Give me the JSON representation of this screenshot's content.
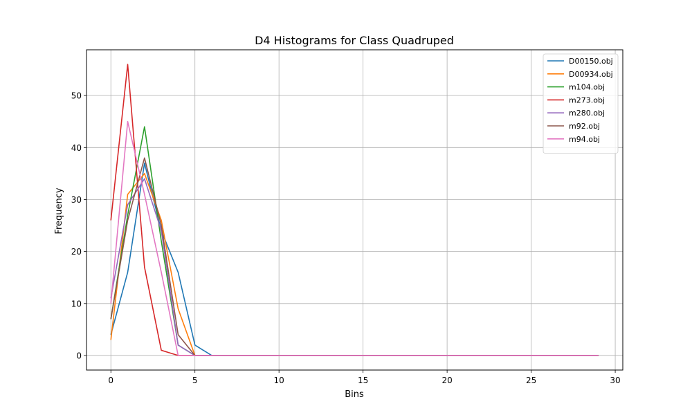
{
  "chart_data": {
    "type": "line",
    "title": "D4 Histograms for Class Quadruped",
    "xlabel": "Bins",
    "ylabel": "Frequency",
    "xlim": [
      -1.45,
      30.45
    ],
    "ylim": [
      -2.8,
      58.8
    ],
    "xticks": [
      0,
      5,
      10,
      15,
      20,
      25,
      30
    ],
    "yticks": [
      0,
      10,
      20,
      30,
      40,
      50
    ],
    "grid": true,
    "legend_position": "top-right",
    "x": [
      0,
      1,
      2,
      3,
      4,
      5,
      6,
      7,
      8,
      9,
      10,
      11,
      12,
      13,
      14,
      15,
      16,
      17,
      18,
      19,
      20,
      21,
      22,
      23,
      24,
      25,
      26,
      27,
      28,
      29
    ],
    "series": [
      {
        "name": "D00150.obj",
        "color": "#1f77b4",
        "values": [
          4,
          16,
          37,
          24,
          16,
          2,
          0,
          0,
          0,
          0,
          0,
          0,
          0,
          0,
          0,
          0,
          0,
          0,
          0,
          0,
          0,
          0,
          0,
          0,
          0,
          0,
          0,
          0,
          0,
          0
        ]
      },
      {
        "name": "D00934.obj",
        "color": "#ff7f0e",
        "values": [
          3,
          31,
          35,
          26,
          9,
          0,
          0,
          0,
          0,
          0,
          0,
          0,
          0,
          0,
          0,
          0,
          0,
          0,
          0,
          0,
          0,
          0,
          0,
          0,
          0,
          0,
          0,
          0,
          0,
          0
        ]
      },
      {
        "name": "m104.obj",
        "color": "#2ca02c",
        "values": [
          7,
          27,
          44,
          22,
          2,
          0,
          0,
          0,
          0,
          0,
          0,
          0,
          0,
          0,
          0,
          0,
          0,
          0,
          0,
          0,
          0,
          0,
          0,
          0,
          0,
          0,
          0,
          0,
          0,
          0
        ]
      },
      {
        "name": "m273.obj",
        "color": "#d62728",
        "values": [
          26,
          56,
          17,
          1,
          0,
          0,
          0,
          0,
          0,
          0,
          0,
          0,
          0,
          0,
          0,
          0,
          0,
          0,
          0,
          0,
          0,
          0,
          0,
          0,
          0,
          0,
          0,
          0,
          0,
          0
        ]
      },
      {
        "name": "m280.obj",
        "color": "#9467bd",
        "values": [
          11,
          29,
          34,
          24,
          2,
          0,
          0,
          0,
          0,
          0,
          0,
          0,
          0,
          0,
          0,
          0,
          0,
          0,
          0,
          0,
          0,
          0,
          0,
          0,
          0,
          0,
          0,
          0,
          0,
          0
        ]
      },
      {
        "name": "m92.obj",
        "color": "#8c564b",
        "values": [
          7,
          26,
          38,
          25,
          4,
          0,
          0,
          0,
          0,
          0,
          0,
          0,
          0,
          0,
          0,
          0,
          0,
          0,
          0,
          0,
          0,
          0,
          0,
          0,
          0,
          0,
          0,
          0,
          0,
          0
        ]
      },
      {
        "name": "m94.obj",
        "color": "#e377c2",
        "values": [
          10,
          45,
          31,
          16,
          0,
          0,
          0,
          0,
          0,
          0,
          0,
          0,
          0,
          0,
          0,
          0,
          0,
          0,
          0,
          0,
          0,
          0,
          0,
          0,
          0,
          0,
          0,
          0,
          0,
          0
        ]
      }
    ]
  }
}
